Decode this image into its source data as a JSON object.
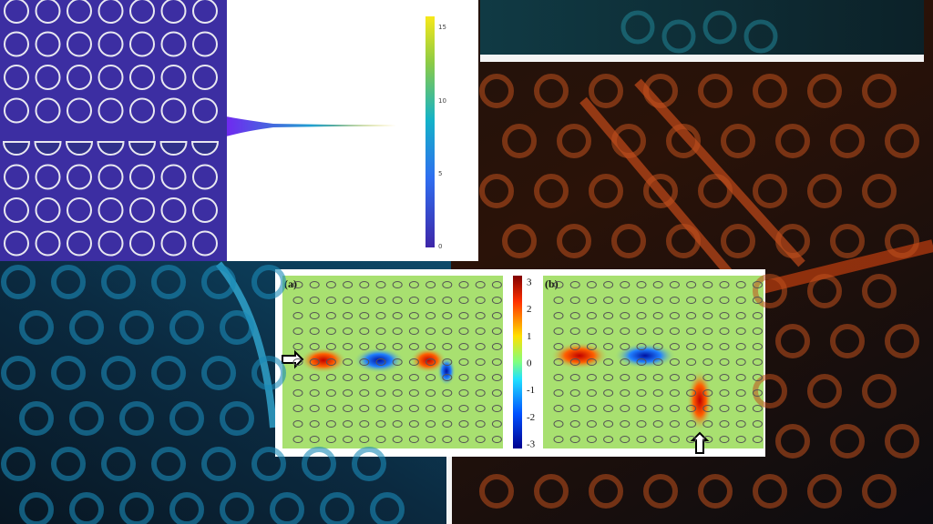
{
  "top_panel": {
    "colorbar_ticks": [
      "15",
      "10",
      "5",
      "0"
    ]
  },
  "field_figure": {
    "panel_labels": [
      "(a)",
      "(b)"
    ],
    "colorbar_ticks": [
      "3",
      "2",
      "1",
      "0",
      "-1",
      "-2",
      "-3"
    ]
  }
}
